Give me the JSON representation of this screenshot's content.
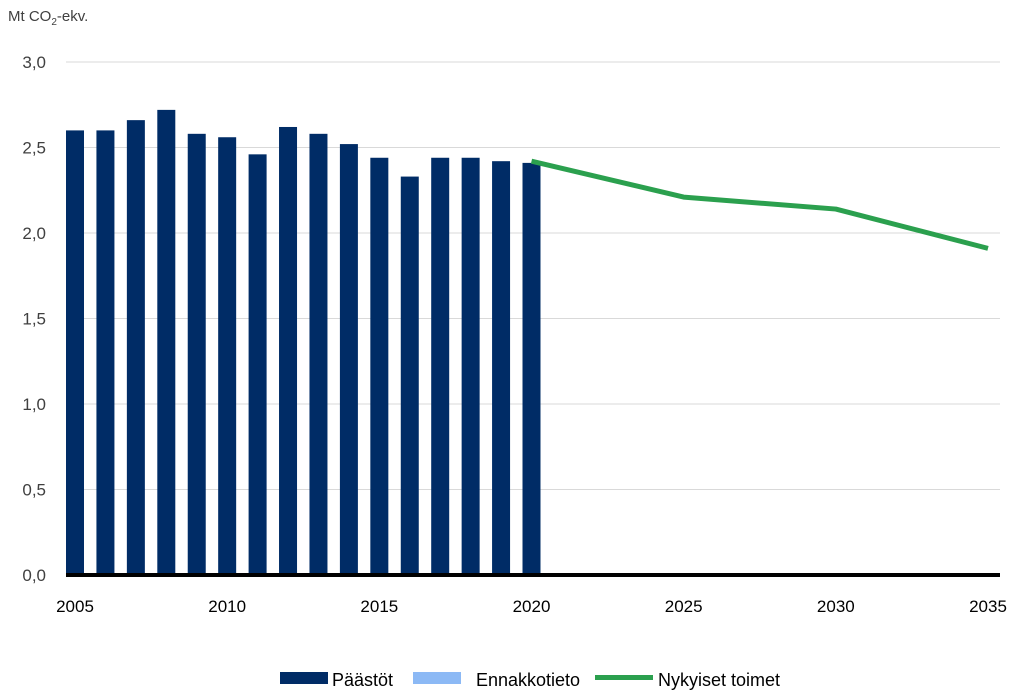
{
  "chart_data": {
    "type": "bar",
    "unit_label": {
      "prefix": "Mt CO",
      "subscript": "2",
      "suffix": "-ekv."
    },
    "ylim": [
      0,
      3.0
    ],
    "yticks": [
      {
        "value": 0.0,
        "label": "0,0"
      },
      {
        "value": 0.5,
        "label": "0,5"
      },
      {
        "value": 1.0,
        "label": "1,0"
      },
      {
        "value": 1.5,
        "label": "1,5"
      },
      {
        "value": 2.0,
        "label": "2,0"
      },
      {
        "value": 2.5,
        "label": "2,5"
      },
      {
        "value": 3.0,
        "label": "3,0"
      }
    ],
    "xlim": [
      2005,
      2035
    ],
    "xticks": [
      "2005",
      "2010",
      "2015",
      "2020",
      "2025",
      "2030",
      "2035"
    ],
    "grid": true,
    "legend_position": "bottom",
    "series": [
      {
        "name": "Päästöt",
        "kind": "bar",
        "color": "#002C66",
        "x": [
          2005,
          2006,
          2007,
          2008,
          2009,
          2010,
          2011,
          2012,
          2013,
          2014,
          2015,
          2016,
          2017,
          2018,
          2019,
          2020
        ],
        "values": [
          2.6,
          2.6,
          2.66,
          2.72,
          2.58,
          2.56,
          2.46,
          2.62,
          2.58,
          2.52,
          2.44,
          2.33,
          2.44,
          2.44,
          2.42,
          2.41
        ]
      },
      {
        "name": "Ennakkotieto",
        "kind": "bar",
        "color": "#8CB9F5",
        "x": [],
        "values": []
      },
      {
        "name": "Nykyiset toimet",
        "kind": "line",
        "color": "#2BA04E",
        "x": [
          2020,
          2025,
          2030,
          2035
        ],
        "values": [
          2.42,
          2.21,
          2.14,
          1.91
        ]
      }
    ]
  }
}
